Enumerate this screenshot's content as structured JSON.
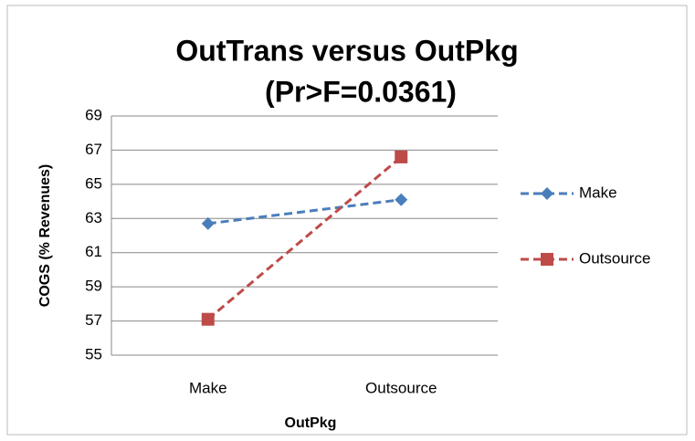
{
  "chart_data": {
    "type": "line",
    "title": "OutTrans versus OutPkg",
    "subtitle": "(Pr>F=0.0361)",
    "x_label": "OutPkg",
    "y_label": "COGS (% Revenues)",
    "categories": [
      "Make",
      "Outsource"
    ],
    "series": [
      {
        "name": "Make",
        "color": "#4a7ebb",
        "marker": "diamond",
        "values": [
          62.7,
          64.1
        ]
      },
      {
        "name": "Outsource",
        "color": "#be4b48",
        "marker": "square",
        "values": [
          57.1,
          66.6
        ]
      }
    ],
    "ylim": [
      55,
      69
    ],
    "yticks": [
      55,
      57,
      59,
      61,
      63,
      65,
      67,
      69
    ],
    "grid": true,
    "legend": "right"
  }
}
